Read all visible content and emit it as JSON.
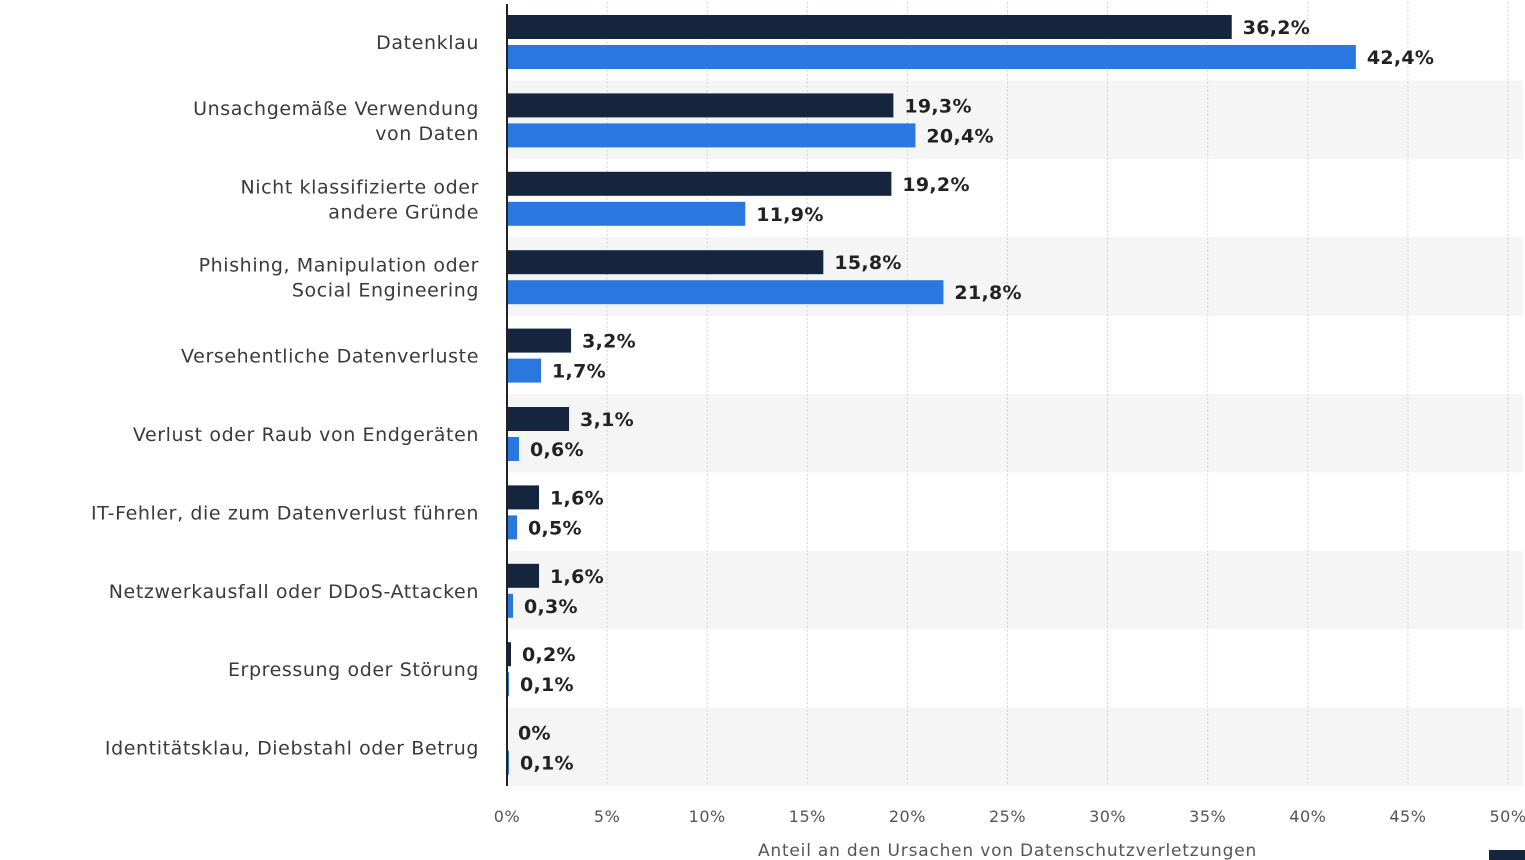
{
  "chart_data": {
    "type": "bar",
    "orientation": "horizontal",
    "categories": [
      [
        "Datenklau"
      ],
      [
        "Unsachgemäße Verwendung",
        "von Daten"
      ],
      [
        "Nicht klassifizierte oder",
        "andere Gründe"
      ],
      [
        "Phishing, Manipulation oder",
        "Social Engineering"
      ],
      [
        "Versehentliche Datenverluste"
      ],
      [
        "Verlust oder Raub von Endgeräten"
      ],
      [
        "IT-Fehler, die zum Datenverlust führen"
      ],
      [
        "Netzwerkausfall oder DDoS-Attacken"
      ],
      [
        "Erpressung oder Störung"
      ],
      [
        "Identitätsklau, Diebstahl oder Betrug"
      ]
    ],
    "series": [
      {
        "color": "#14253d",
        "values": [
          36.2,
          19.3,
          19.2,
          15.8,
          3.2,
          3.1,
          1.6,
          1.6,
          0.2,
          0
        ],
        "labels": [
          "36,2%",
          "19,3%",
          "19,2%",
          "15,8%",
          "3,2%",
          "3,1%",
          "1,6%",
          "1,6%",
          "0,2%",
          "0%"
        ]
      },
      {
        "color": "#2a77e0",
        "values": [
          42.4,
          20.4,
          11.9,
          21.8,
          1.7,
          0.6,
          0.5,
          0.3,
          0.1,
          0.1
        ],
        "labels": [
          "42,4%",
          "20,4%",
          "11,9%",
          "21,8%",
          "1,7%",
          "0,6%",
          "0,5%",
          "0,3%",
          "0,1%",
          "0,1%"
        ]
      }
    ],
    "xlim": [
      0,
      50
    ],
    "xticks": [
      0,
      5,
      10,
      15,
      20,
      25,
      30,
      35,
      40,
      45,
      50
    ],
    "xtick_labels": [
      "0%",
      "5%",
      "10%",
      "15%",
      "20%",
      "25%",
      "30%",
      "35%",
      "40%",
      "45%",
      "50%"
    ],
    "xlabel": "Anteil an den Ursachen von Datenschutzverletzungen",
    "grid": "vertical-dotted",
    "band_color": "#f5f5f5"
  }
}
